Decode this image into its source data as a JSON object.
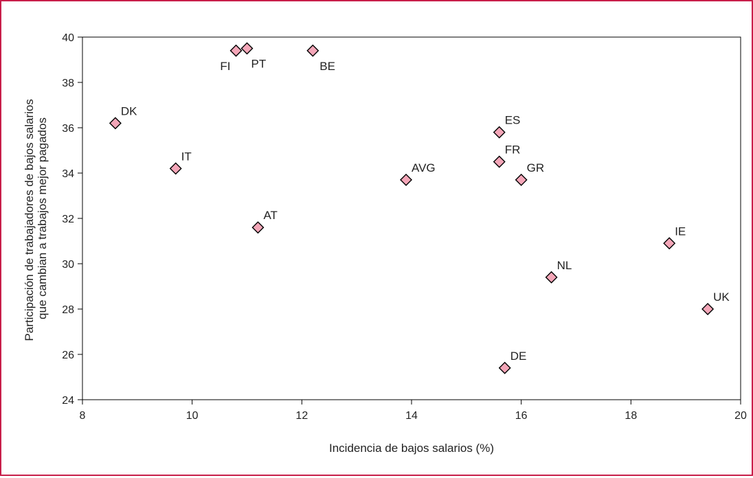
{
  "chart_data": {
    "type": "scatter",
    "xlabel": "Incidencia de bajos salarios (%)",
    "ylabel_line1": "Participación de trabajadores de bajos salarios",
    "ylabel_line2": "que cambian a trabajos mejor pagados",
    "xlim": [
      8,
      20
    ],
    "ylim": [
      24,
      40
    ],
    "xticks": [
      "8",
      "10",
      "12",
      "14",
      "16",
      "18",
      "20"
    ],
    "yticks": [
      "24",
      "26",
      "28",
      "30",
      "32",
      "34",
      "36",
      "38",
      "40"
    ],
    "grid": false,
    "marker": "diamond",
    "marker_fill": "#f4a6b8",
    "marker_stroke": "#000000",
    "border_color": "#c81e4a",
    "points": [
      {
        "label": "DK",
        "x": 8.6,
        "y": 36.2
      },
      {
        "label": "IT",
        "x": 9.7,
        "y": 34.2
      },
      {
        "label": "FI",
        "x": 10.8,
        "y": 39.4
      },
      {
        "label": "PT",
        "x": 11.0,
        "y": 39.5
      },
      {
        "label": "AT",
        "x": 11.2,
        "y": 31.6
      },
      {
        "label": "BE",
        "x": 12.2,
        "y": 39.4
      },
      {
        "label": "AVG",
        "x": 13.9,
        "y": 33.7
      },
      {
        "label": "ES",
        "x": 15.6,
        "y": 35.8
      },
      {
        "label": "FR",
        "x": 15.6,
        "y": 34.5
      },
      {
        "label": "DE",
        "x": 15.7,
        "y": 25.4
      },
      {
        "label": "GR",
        "x": 16.0,
        "y": 33.7
      },
      {
        "label": "NL",
        "x": 16.55,
        "y": 29.4
      },
      {
        "label": "IE",
        "x": 18.7,
        "y": 30.9
      },
      {
        "label": "UK",
        "x": 19.4,
        "y": 28.0
      }
    ]
  }
}
